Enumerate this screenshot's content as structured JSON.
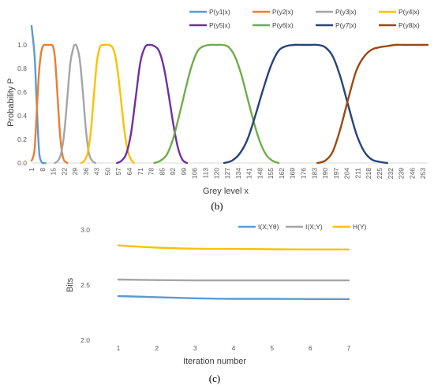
{
  "chart_data": [
    {
      "type": "line",
      "panel_label": "(b)",
      "xlabel": "Grey level x",
      "ylabel": "Probability P",
      "ylim": [
        0,
        1.1
      ],
      "yticks": [
        "0.0",
        "0.2",
        "0.4",
        "0.6",
        "0.8",
        "1.0"
      ],
      "xticks": [
        "1",
        "8",
        "15",
        "22",
        "29",
        "36",
        "43",
        "50",
        "57",
        "64",
        "71",
        "78",
        "85",
        "92",
        "99",
        "106",
        "113",
        "120",
        "127",
        "134",
        "141",
        "148",
        "155",
        "162",
        "169",
        "176",
        "183",
        "190",
        "197",
        "204",
        "211",
        "218",
        "225",
        "232",
        "239",
        "246",
        "253"
      ],
      "xlim": [
        1,
        256
      ],
      "grid": false,
      "legend_position": "top",
      "series": [
        {
          "name": "P(y1|x)",
          "color": "#5B9BD5",
          "x": [
            1,
            3,
            4,
            5,
            6,
            7,
            8,
            10
          ],
          "y": [
            1.16,
            0.9,
            0.6,
            0.3,
            0.08,
            0.02,
            0.0,
            0.0
          ]
        },
        {
          "name": "P(y2|x)",
          "color": "#ED7D31",
          "x": [
            1,
            2,
            3,
            4,
            5,
            6,
            7,
            8,
            9,
            10,
            11,
            12,
            13,
            14,
            15,
            16,
            17,
            18,
            19,
            20,
            21,
            22,
            23,
            24
          ],
          "y": [
            0.02,
            0.05,
            0.12,
            0.35,
            0.6,
            0.8,
            0.92,
            0.98,
            1.0,
            1.0,
            1.0,
            1.0,
            1.0,
            1.0,
            0.98,
            0.9,
            0.72,
            0.5,
            0.3,
            0.15,
            0.06,
            0.02,
            0.01,
            0.0
          ]
        },
        {
          "name": "P(y3|x)",
          "color": "#A5A5A5",
          "x": [
            16,
            18,
            20,
            22,
            24,
            26,
            28,
            29,
            30,
            32,
            34,
            36,
            38,
            40,
            42
          ],
          "y": [
            0.0,
            0.02,
            0.08,
            0.25,
            0.55,
            0.85,
            0.98,
            1.0,
            0.99,
            0.88,
            0.6,
            0.28,
            0.08,
            0.02,
            0.0
          ]
        },
        {
          "name": "P(y4|x)",
          "color": "#FFC000",
          "x": [
            33,
            35,
            37,
            39,
            41,
            43,
            45,
            47,
            49,
            51,
            53,
            55,
            57,
            59,
            61,
            63,
            65,
            67
          ],
          "y": [
            0.0,
            0.02,
            0.08,
            0.25,
            0.55,
            0.85,
            0.98,
            1.0,
            1.0,
            1.0,
            0.98,
            0.9,
            0.72,
            0.48,
            0.25,
            0.1,
            0.03,
            0.0
          ]
        },
        {
          "name": "P(y5|x)",
          "color": "#7030A0",
          "x": [
            56,
            59,
            62,
            65,
            68,
            71,
            74,
            77,
            80,
            83,
            86,
            89,
            92,
            95,
            98,
            101
          ],
          "y": [
            0.0,
            0.02,
            0.08,
            0.25,
            0.55,
            0.85,
            0.98,
            1.0,
            0.99,
            0.95,
            0.82,
            0.6,
            0.35,
            0.14,
            0.03,
            0.0
          ]
        },
        {
          "name": "P(y6|x)",
          "color": "#70AD47",
          "x": [
            80,
            84,
            88,
            92,
            96,
            100,
            104,
            108,
            112,
            116,
            120,
            124,
            128,
            132,
            136,
            140,
            144,
            148,
            152,
            156,
            160
          ],
          "y": [
            0.0,
            0.02,
            0.07,
            0.2,
            0.4,
            0.62,
            0.82,
            0.95,
            0.99,
            1.0,
            1.0,
            1.0,
            0.98,
            0.9,
            0.75,
            0.55,
            0.35,
            0.18,
            0.07,
            0.02,
            0.0
          ]
        },
        {
          "name": "P(y7|x)",
          "color": "#264478",
          "x": [
            125,
            130,
            135,
            140,
            145,
            150,
            155,
            160,
            165,
            170,
            175,
            180,
            185,
            190,
            195,
            200,
            205,
            210,
            215,
            220,
            225,
            230
          ],
          "y": [
            0.0,
            0.02,
            0.08,
            0.2,
            0.4,
            0.62,
            0.82,
            0.95,
            0.99,
            1.0,
            1.0,
            1.0,
            1.0,
            0.98,
            0.9,
            0.72,
            0.48,
            0.25,
            0.1,
            0.03,
            0.01,
            0.0
          ]
        },
        {
          "name": "P(y8|x)",
          "color": "#9E480E",
          "x": [
            185,
            190,
            195,
            200,
            205,
            210,
            215,
            220,
            225,
            230,
            235,
            240,
            245,
            256
          ],
          "y": [
            0.0,
            0.02,
            0.1,
            0.3,
            0.55,
            0.78,
            0.9,
            0.96,
            0.98,
            0.99,
            1.0,
            1.0,
            1.0,
            1.0
          ]
        }
      ]
    },
    {
      "type": "line",
      "panel_label": "(c)",
      "xlabel": "Iteration number",
      "ylabel": "Bits",
      "ylim": [
        2.0,
        3.0
      ],
      "yticks": [
        "2.0",
        "2.5",
        "3.0"
      ],
      "categories": [
        "1",
        "2",
        "3",
        "4",
        "5",
        "6",
        "7"
      ],
      "grid": false,
      "legend_position": "top-right",
      "series": [
        {
          "name": "I(X;Yθ)",
          "color": "#5B9BD5",
          "values": [
            2.4,
            2.39,
            2.38,
            2.375,
            2.375,
            2.373,
            2.372
          ]
        },
        {
          "name": "I(X;Y)",
          "color": "#A5A5A5",
          "values": [
            2.55,
            2.545,
            2.542,
            2.542,
            2.542,
            2.542,
            2.542
          ]
        },
        {
          "name": "H(Y)",
          "color": "#FFC000",
          "values": [
            2.86,
            2.84,
            2.83,
            2.828,
            2.825,
            2.823,
            2.823
          ]
        }
      ]
    }
  ]
}
